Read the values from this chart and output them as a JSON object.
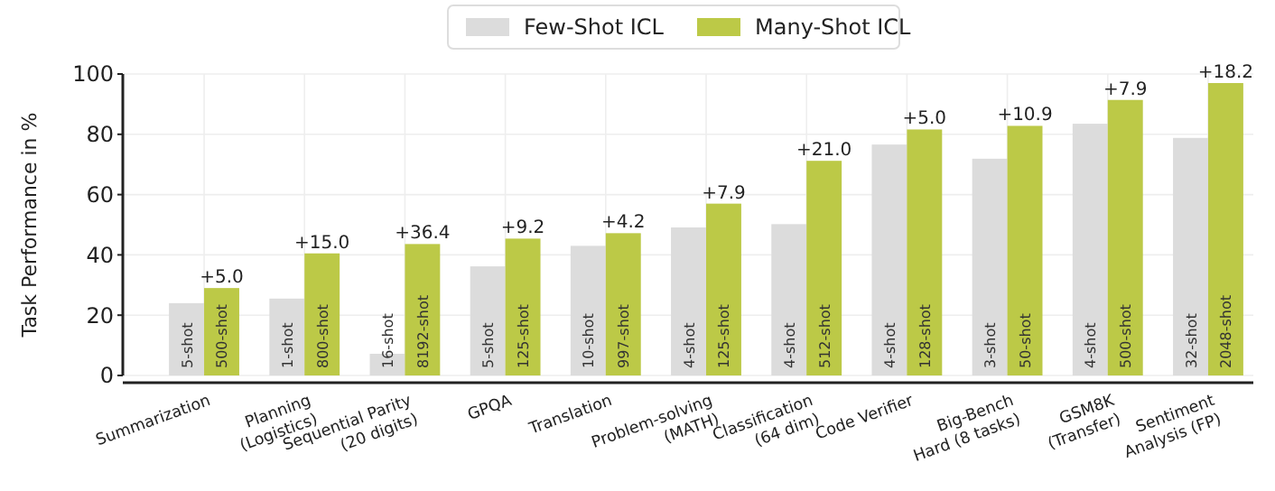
{
  "chart_data": {
    "type": "bar",
    "ylabel": "Task Performance in %",
    "categories": [
      "Summarization",
      "Planning\n(Logistics)",
      "Sequential Parity\n(20 digits)",
      "GPQA",
      "Translation",
      "Problem-solving\n(MATH)",
      "Classification\n(64 dim)",
      "Code Verifier",
      "Big-Bench\nHard (8 tasks)",
      "GSM8K\n(Transfer)",
      "Sentiment\nAnalysis (FP)"
    ],
    "series": [
      {
        "name": "Few-Shot ICL",
        "color": "#dcdcdc",
        "values": [
          24.0,
          25.5,
          7.2,
          36.2,
          43.0,
          49.1,
          50.2,
          76.6,
          71.9,
          83.5,
          78.8
        ]
      },
      {
        "name": "Many-Shot ICL",
        "color": "#bcc947",
        "values": [
          29.0,
          40.5,
          43.6,
          45.4,
          47.2,
          57.0,
          71.2,
          81.6,
          82.8,
          91.4,
          97.0
        ]
      }
    ],
    "annotations": [
      {
        "text": "+5.0",
        "x": "Summarization",
        "y": 29.0
      },
      {
        "text": "+15.0",
        "x": "Planning\n(Logistics)",
        "y": 40.5
      },
      {
        "text": "+36.4",
        "x": "Sequential Parity\n(20 digits)",
        "y": 43.6
      },
      {
        "text": "+9.2",
        "x": "GPQA",
        "y": 45.4
      },
      {
        "text": "+4.2",
        "x": "Translation",
        "y": 47.2
      },
      {
        "text": "+7.9",
        "x": "Problem-solving\n(MATH)",
        "y": 57.0
      },
      {
        "text": "+21.0",
        "x": "Classification\n(64 dim)",
        "y": 71.2
      },
      {
        "text": "+5.0",
        "x": "Code Verifier",
        "y": 81.6
      },
      {
        "text": "+10.9",
        "x": "Big-Bench\nHard (8 tasks)",
        "y": 82.8
      },
      {
        "text": "+7.9",
        "x": "GSM8K\n(Transfer)",
        "y": 91.4
      },
      {
        "text": "+18.2",
        "x": "Sentiment\nAnalysis (FP)",
        "y": 97.0
      },
      {
        "text": "5-shot",
        "x": "Summarization",
        "y": 0
      },
      {
        "text": "1-shot",
        "x": "Planning\n(Logistics)",
        "y": 0
      },
      {
        "text": "16-shot",
        "x": "Sequential Parity\n(20 digits)",
        "y": 0
      },
      {
        "text": "5-shot",
        "x": "GPQA",
        "y": 0
      },
      {
        "text": "10-shot",
        "x": "Translation",
        "y": 0
      },
      {
        "text": "4-shot",
        "x": "Problem-solving\n(MATH)",
        "y": 0
      },
      {
        "text": "4-shot",
        "x": "Classification\n(64 dim)",
        "y": 0
      },
      {
        "text": "4-shot",
        "x": "Code Verifier",
        "y": 0
      },
      {
        "text": "3-shot",
        "x": "Big-Bench\nHard (8 tasks)",
        "y": 0
      },
      {
        "text": "4-shot",
        "x": "GSM8K\n(Transfer)",
        "y": 0
      },
      {
        "text": "32-shot",
        "x": "Sentiment\nAnalysis (FP)",
        "y": 0
      },
      {
        "text": "500-shot",
        "x": "Summarization",
        "y": 0
      },
      {
        "text": "800-shot",
        "x": "Planning\n(Logistics)",
        "y": 0
      },
      {
        "text": "8192-shot",
        "x": "Sequential Parity\n(20 digits)",
        "y": 0
      },
      {
        "text": "125-shot",
        "x": "GPQA",
        "y": 0
      },
      {
        "text": "997-shot",
        "x": "Translation",
        "y": 0
      },
      {
        "text": "125-shot",
        "x": "Problem-solving\n(MATH)",
        "y": 0
      },
      {
        "text": "512-shot",
        "x": "Classification\n(64 dim)",
        "y": 0
      },
      {
        "text": "128-shot",
        "x": "Code Verifier",
        "y": 0
      },
      {
        "text": "50-shot",
        "x": "Big-Bench\nHard (8 tasks)",
        "y": 0
      },
      {
        "text": "500-shot",
        "x": "GSM8K\n(Transfer)",
        "y": 0
      },
      {
        "text": "2048-shot",
        "x": "Sentiment\nAnalysis (FP)",
        "y": 0
      }
    ],
    "ylim": [
      0,
      100
    ],
    "yticks": [
      0,
      20,
      40,
      60,
      80,
      100
    ],
    "grid": true,
    "legend": "top"
  }
}
